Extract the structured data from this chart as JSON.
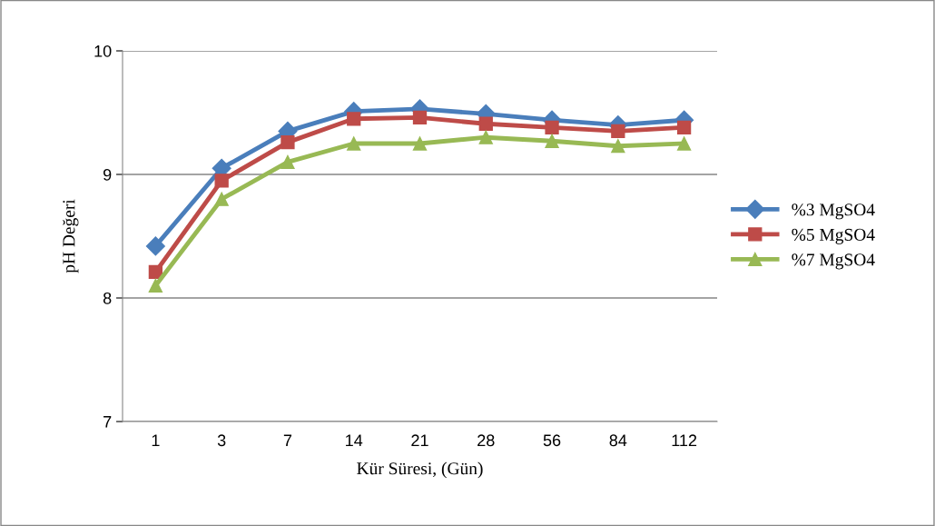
{
  "chart_data": {
    "type": "line",
    "xlabel": "Kür Süresi, (Gün)",
    "ylabel": "pH Değeri",
    "categories": [
      "1",
      "3",
      "7",
      "14",
      "21",
      "28",
      "56",
      "84",
      "112"
    ],
    "series": [
      {
        "name": "%3 MgSO4",
        "color": "#4a7ebb",
        "marker": "diamond",
        "values": [
          8.42,
          9.05,
          9.35,
          9.51,
          9.53,
          9.49,
          9.44,
          9.4,
          9.44
        ]
      },
      {
        "name": "%5 MgSO4",
        "color": "#be4b48",
        "marker": "square",
        "values": [
          8.21,
          8.95,
          9.26,
          9.45,
          9.46,
          9.41,
          9.38,
          9.35,
          9.38
        ]
      },
      {
        "name": "%7 MgSO4",
        "color": "#98b954",
        "marker": "triangle",
        "values": [
          8.1,
          8.8,
          9.1,
          9.25,
          9.25,
          9.3,
          9.27,
          9.23,
          9.25
        ]
      }
    ],
    "ylim": [
      7,
      10
    ],
    "yticks": [
      7,
      8,
      9,
      10
    ],
    "grid": "y",
    "legend": "right",
    "line_style": "solid"
  }
}
